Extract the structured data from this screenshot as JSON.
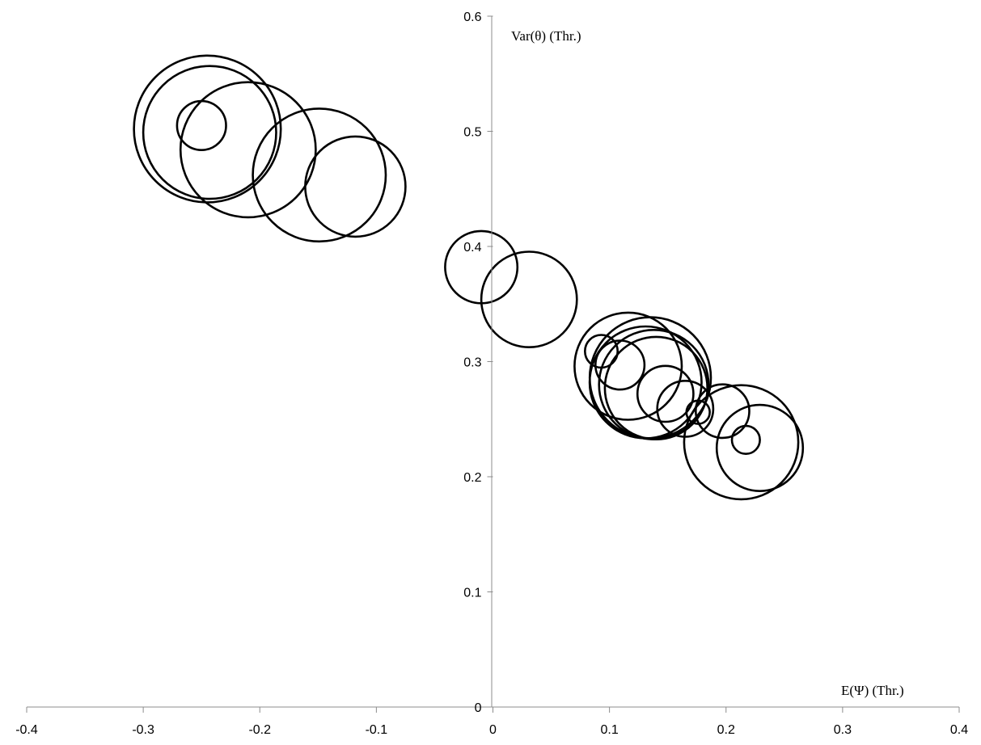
{
  "chart_data": {
    "type": "bubble",
    "title": "",
    "xlabel": "E(Ψ) (Thr.)",
    "ylabel": "Var(θ) (Thr.)",
    "xlim": [
      -0.4,
      0.4
    ],
    "ylim": [
      0,
      0.6
    ],
    "x_ticks": [
      "-0.4",
      "-0.3",
      "-0.2",
      "-0.1",
      "0",
      "0.1",
      "0.2",
      "0.3",
      "0.4"
    ],
    "y_ticks": [
      "0",
      "0.1",
      "0.2",
      "0.3",
      "0.4",
      "0.5",
      "0.6"
    ],
    "grid": false,
    "legend": "none",
    "marker": "open circle",
    "axes_cross_at": [
      0,
      0
    ],
    "points": [
      {
        "x": -0.245,
        "y": 0.502,
        "size": 0.063
      },
      {
        "x": -0.243,
        "y": 0.499,
        "size": 0.057
      },
      {
        "x": -0.25,
        "y": 0.505,
        "size": 0.021
      },
      {
        "x": -0.21,
        "y": 0.484,
        "size": 0.058
      },
      {
        "x": -0.149,
        "y": 0.462,
        "size": 0.057
      },
      {
        "x": -0.118,
        "y": 0.452,
        "size": 0.043
      },
      {
        "x": -0.01,
        "y": 0.382,
        "size": 0.031
      },
      {
        "x": 0.031,
        "y": 0.354,
        "size": 0.041
      },
      {
        "x": 0.116,
        "y": 0.296,
        "size": 0.046
      },
      {
        "x": 0.093,
        "y": 0.309,
        "size": 0.014
      },
      {
        "x": 0.109,
        "y": 0.297,
        "size": 0.021
      },
      {
        "x": 0.135,
        "y": 0.286,
        "size": 0.052
      },
      {
        "x": 0.131,
        "y": 0.282,
        "size": 0.048
      },
      {
        "x": 0.138,
        "y": 0.28,
        "size": 0.047
      },
      {
        "x": 0.14,
        "y": 0.277,
        "size": 0.044
      },
      {
        "x": 0.148,
        "y": 0.272,
        "size": 0.024
      },
      {
        "x": 0.165,
        "y": 0.259,
        "size": 0.024
      },
      {
        "x": 0.176,
        "y": 0.256,
        "size": 0.01
      },
      {
        "x": 0.197,
        "y": 0.257,
        "size": 0.023
      },
      {
        "x": 0.213,
        "y": 0.23,
        "size": 0.049
      },
      {
        "x": 0.229,
        "y": 0.225,
        "size": 0.037
      },
      {
        "x": 0.217,
        "y": 0.232,
        "size": 0.012
      }
    ]
  }
}
